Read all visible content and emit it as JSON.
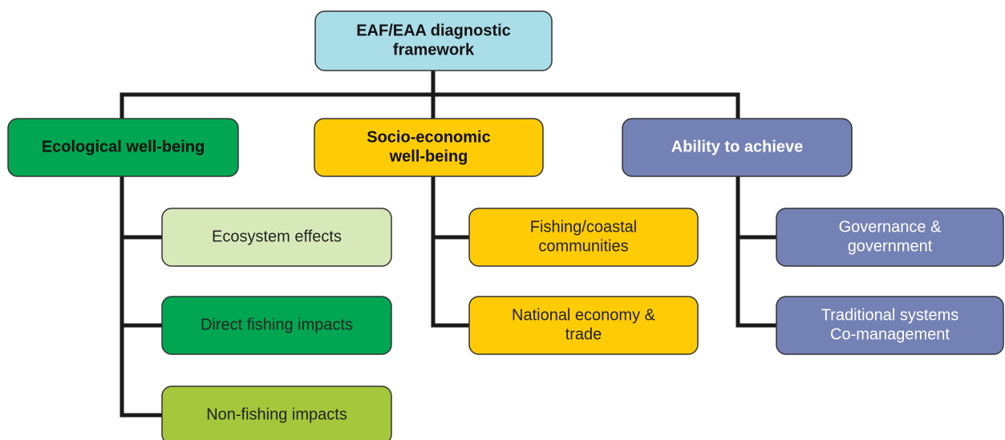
{
  "nodes": [
    {
      "lines": [
        "EAF/EAA diagnostic",
        "framework"
      ]
    },
    {
      "lines": [
        "Ecological well-being"
      ]
    },
    {
      "lines": [
        "Socio-economic",
        "well-being"
      ]
    },
    {
      "lines": [
        "Ability to achieve"
      ]
    },
    {
      "lines": [
        "Ecosystem effects"
      ]
    },
    {
      "lines": [
        "Direct fishing impacts"
      ]
    },
    {
      "lines": [
        "Non-fishing impacts"
      ]
    },
    {
      "lines": [
        "Fishing/coastal",
        "communities"
      ]
    },
    {
      "lines": [
        "National economy &",
        "trade"
      ]
    },
    {
      "lines": [
        "Governance &",
        "government"
      ]
    },
    {
      "lines": [
        "Traditional systems",
        "Co-management"
      ]
    }
  ]
}
